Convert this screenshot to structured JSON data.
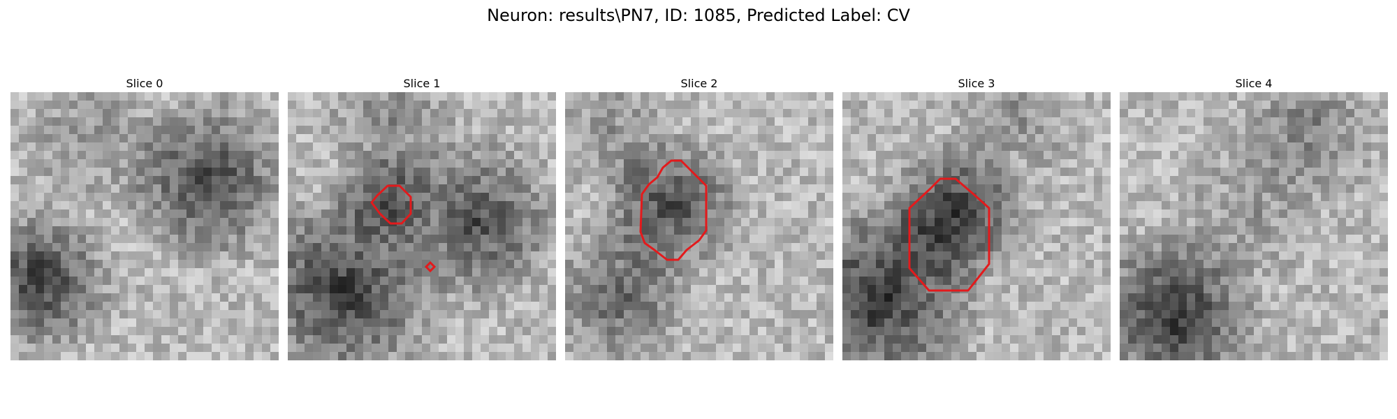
{
  "figure": {
    "title": "Neuron: results\\PN7, ID: 1085, Predicted Label: CV",
    "contour_color": "#e31a1c"
  },
  "panels": [
    {
      "title": "Slice 0",
      "has_contour": false,
      "description": "grayscale microscopy patch, dark blobs at lower-left and right"
    },
    {
      "title": "Slice 1",
      "has_contour": true,
      "description": "grayscale patch with small red contour near center and tiny red marker below"
    },
    {
      "title": "Slice 2",
      "has_contour": true,
      "description": "grayscale patch with large red octagonal contour around dark central blob"
    },
    {
      "title": "Slice 3",
      "has_contour": true,
      "description": "grayscale patch with red octagonal contour around dark central blob"
    },
    {
      "title": "Slice 4",
      "has_contour": false,
      "description": "grayscale patch, dark region at lower-left"
    }
  ]
}
